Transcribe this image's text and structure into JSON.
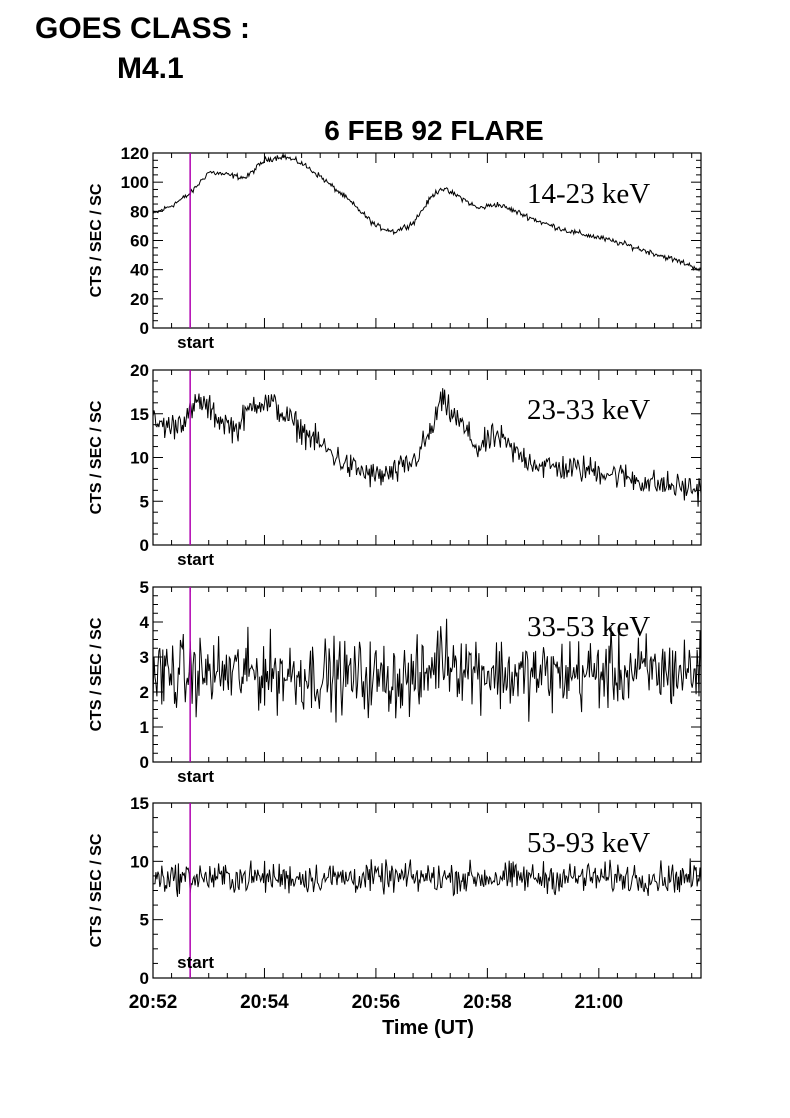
{
  "header": {
    "goes_label": "GOES CLASS :",
    "goes_value": "M4.1"
  },
  "colors": {
    "trace": "#000000",
    "start_marker": "#b000b0",
    "axes": "#000000"
  },
  "chart_data": {
    "type": "line",
    "title": "6 FEB 92 FLARE",
    "xlabel": "Time (UT)",
    "x_ticks": [
      "20:52",
      "20:54",
      "20:56",
      "20:58",
      "21:00"
    ],
    "start_marker_label": "start",
    "start_marker_time": "20:52:40",
    "panels": [
      {
        "name": "14-23 keV",
        "ylabel": "CTS / SEC / SC",
        "ylim": [
          0,
          120
        ],
        "yticks": [
          0,
          20,
          40,
          60,
          80,
          100,
          120
        ],
        "noise": 1.5,
        "x": [
          "20:52:00",
          "20:52:20",
          "20:52:40",
          "20:53:00",
          "20:53:20",
          "20:53:40",
          "20:54:00",
          "20:54:20",
          "20:54:40",
          "20:55:00",
          "20:55:30",
          "20:56:00",
          "20:56:20",
          "20:56:40",
          "20:57:00",
          "20:57:10",
          "20:57:30",
          "20:57:50",
          "20:58:10",
          "20:58:30",
          "20:59:00",
          "20:59:30",
          "21:00:00",
          "21:00:30",
          "21:01:00",
          "21:01:30",
          "21:01:50"
        ],
        "y": [
          78,
          84,
          92,
          107,
          105,
          103,
          115,
          118,
          113,
          104,
          88,
          70,
          66,
          72,
          90,
          96,
          90,
          82,
          85,
          80,
          72,
          66,
          62,
          57,
          51,
          45,
          40
        ]
      },
      {
        "name": "23-33 keV",
        "ylabel": "CTS / SEC / SC",
        "ylim": [
          0,
          20
        ],
        "yticks": [
          0,
          5,
          10,
          15,
          20
        ],
        "noise": 1.2,
        "x": [
          "20:52:00",
          "20:52:20",
          "20:52:40",
          "20:52:50",
          "20:53:10",
          "20:53:30",
          "20:53:50",
          "20:54:10",
          "20:54:30",
          "20:55:00",
          "20:55:30",
          "20:56:00",
          "20:56:20",
          "20:56:40",
          "20:57:00",
          "20:57:10",
          "20:57:30",
          "20:57:50",
          "20:58:10",
          "20:58:30",
          "20:59:00",
          "21:00:00",
          "21:01:00",
          "21:01:50"
        ],
        "y": [
          14,
          13.5,
          15,
          16.5,
          14.5,
          13.2,
          16.5,
          16,
          14,
          11.5,
          9,
          7.8,
          8.2,
          9.5,
          13,
          16.5,
          14,
          11,
          12.5,
          10.5,
          9,
          8.5,
          7,
          6.3
        ]
      },
      {
        "name": "33-53 keV",
        "ylabel": "CTS / SEC / SC",
        "ylim": [
          0,
          5
        ],
        "yticks": [
          0,
          1,
          2,
          3,
          4,
          5
        ],
        "noise": 0.8,
        "x": [
          "20:52:00",
          "20:54:00",
          "20:56:00",
          "20:56:50",
          "20:57:10",
          "20:57:40",
          "20:58:30",
          "21:00:00",
          "21:01:50"
        ],
        "y": [
          2.5,
          2.55,
          2.4,
          2.35,
          3.1,
          2.7,
          2.45,
          2.55,
          2.6
        ]
      },
      {
        "name": "53-93 keV",
        "ylabel": "CTS / SEC / SC",
        "ylim": [
          0,
          15
        ],
        "yticks": [
          0,
          5,
          10,
          15
        ],
        "noise": 1.0,
        "x": [
          "20:52:00",
          "21:01:50"
        ],
        "y": [
          8.6,
          8.6
        ]
      }
    ]
  }
}
